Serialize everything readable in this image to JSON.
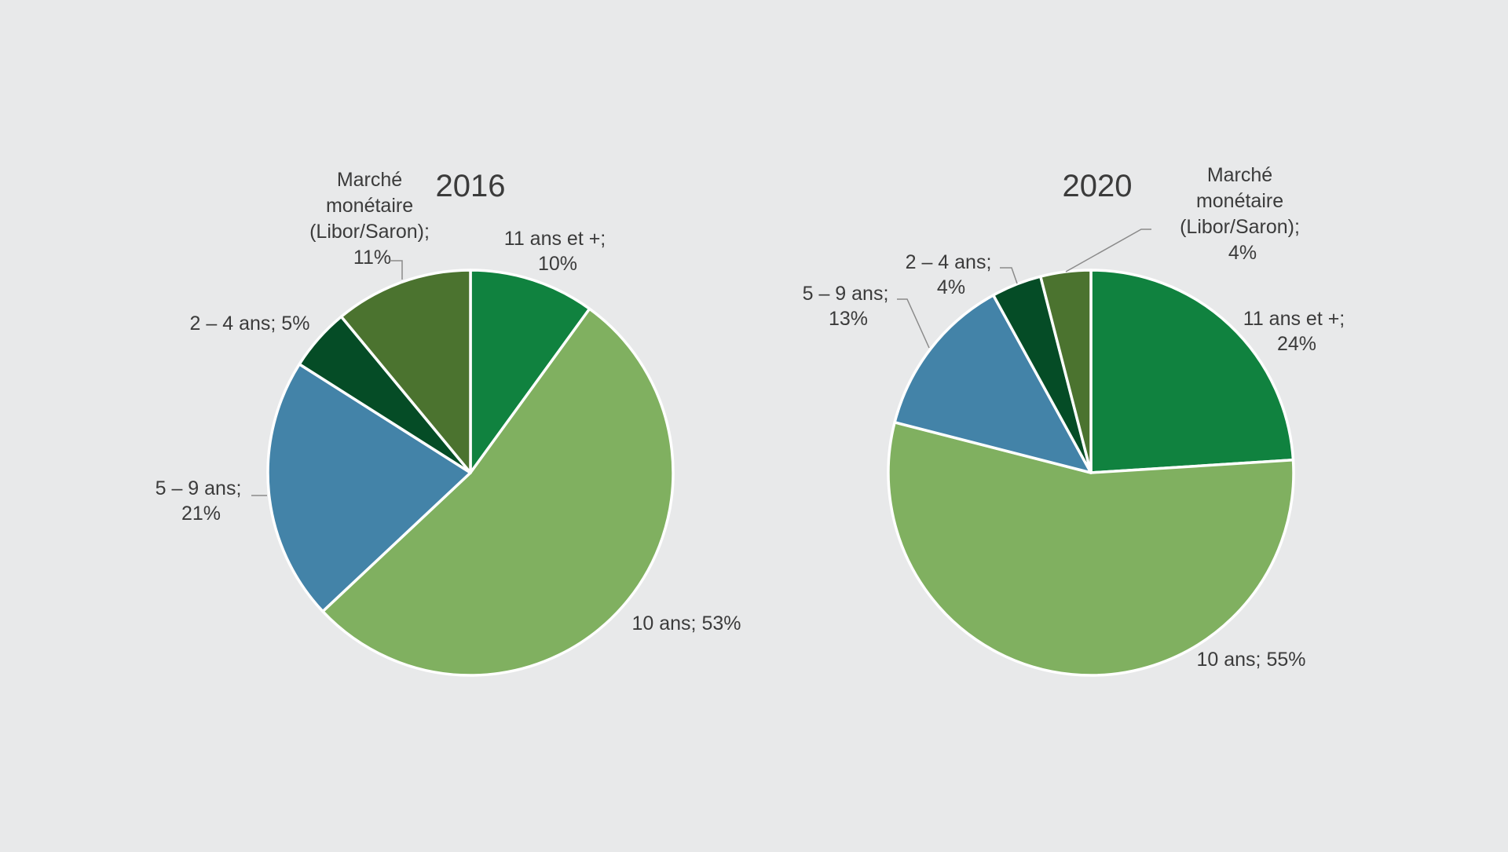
{
  "colors": {
    "background": "#e8e9ea",
    "11 ans et +": "#10823f",
    "10 ans": "#80b060",
    "5 – 9 ans": "#4383a8",
    "2 – 4 ans": "#054c26",
    "Marché monétaire": "#4b732f"
  },
  "chart_data": [
    {
      "type": "pie",
      "title": "2016",
      "slices": [
        {
          "key": "11 ans et +",
          "value": 10,
          "label": [
            "11 ans et +;",
            "10%"
          ]
        },
        {
          "key": "10 ans",
          "value": 53,
          "label": [
            "10 ans; 53%"
          ]
        },
        {
          "key": "5 – 9 ans",
          "value": 21,
          "label": [
            "5 – 9 ans;",
            "21%"
          ]
        },
        {
          "key": "2 – 4 ans",
          "value": 5,
          "label": [
            "2 – 4 ans; 5%"
          ]
        },
        {
          "key": "Marché monétaire",
          "value": 11,
          "label": [
            "Marché",
            "monétaire",
            "(Libor/Saron);",
            "11%"
          ]
        }
      ]
    },
    {
      "type": "pie",
      "title": "2020",
      "slices": [
        {
          "key": "11 ans et +",
          "value": 24,
          "label": [
            "11 ans et +;",
            "24%"
          ]
        },
        {
          "key": "10 ans",
          "value": 55,
          "label": [
            "10 ans; 55%"
          ]
        },
        {
          "key": "5 – 9 ans",
          "value": 13,
          "label": [
            "5 – 9 ans;",
            "13%"
          ]
        },
        {
          "key": "2 – 4 ans",
          "value": 4,
          "label": [
            "2 – 4 ans;",
            "4%"
          ]
        },
        {
          "key": "Marché monétaire",
          "value": 4,
          "label": [
            "Marché",
            "monétaire",
            "(Libor/Saron);",
            "4%"
          ]
        }
      ]
    }
  ]
}
